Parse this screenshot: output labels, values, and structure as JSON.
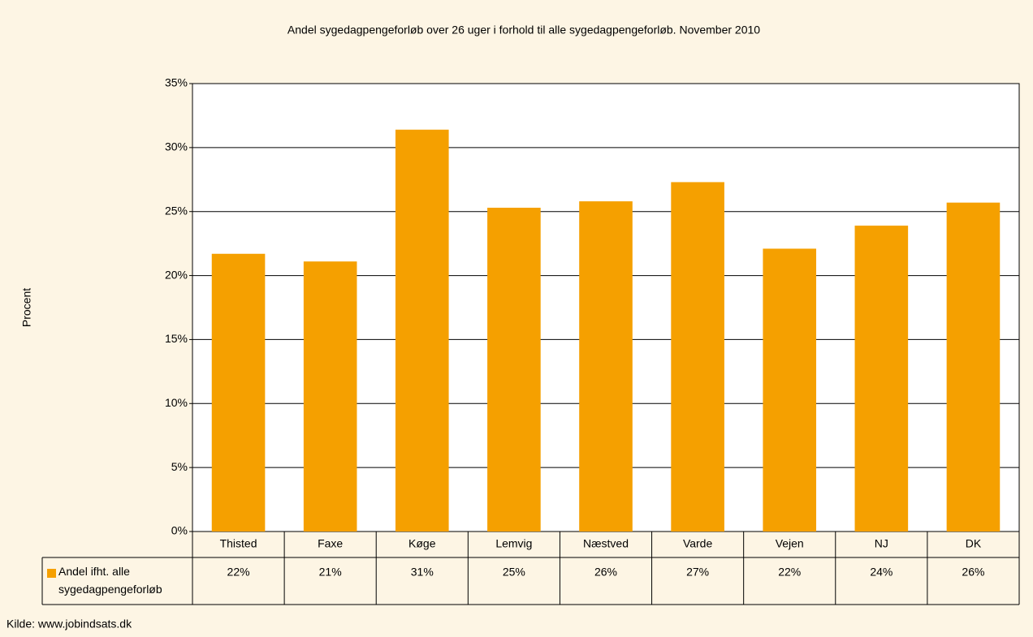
{
  "chart_data": {
    "type": "bar",
    "title": "Andel sygedagpengeforløb over 26 uger i forhold til alle sygedagpengeforløb. November 2010",
    "y_label": "Procent",
    "source": "Kilde: www.jobindsats.dk",
    "categories": [
      "Thisted",
      "Faxe",
      "Køge",
      "Lemvig",
      "Næstved",
      "Varde",
      "Vejen",
      "NJ",
      "DK"
    ],
    "series": [
      {
        "name": "Andel ifht. alle sygedagpengeforløb",
        "color": "#f5a000",
        "values": [
          21.7,
          21.1,
          31.4,
          25.3,
          25.8,
          27.3,
          22.1,
          23.9,
          25.7
        ],
        "value_labels": [
          "22%",
          "21%",
          "31%",
          "25%",
          "26%",
          "27%",
          "22%",
          "24%",
          "26%"
        ]
      }
    ],
    "ylim": [
      0,
      35
    ],
    "yticks": [
      {
        "value": 0,
        "label": "0%"
      },
      {
        "value": 5,
        "label": "5%"
      },
      {
        "value": 10,
        "label": "10%"
      },
      {
        "value": 15,
        "label": "15%"
      },
      {
        "value": 20,
        "label": "20%"
      },
      {
        "value": 25,
        "label": "25%"
      },
      {
        "value": 30,
        "label": "30%"
      },
      {
        "value": 35,
        "label": "35%"
      }
    ],
    "grid": true
  }
}
